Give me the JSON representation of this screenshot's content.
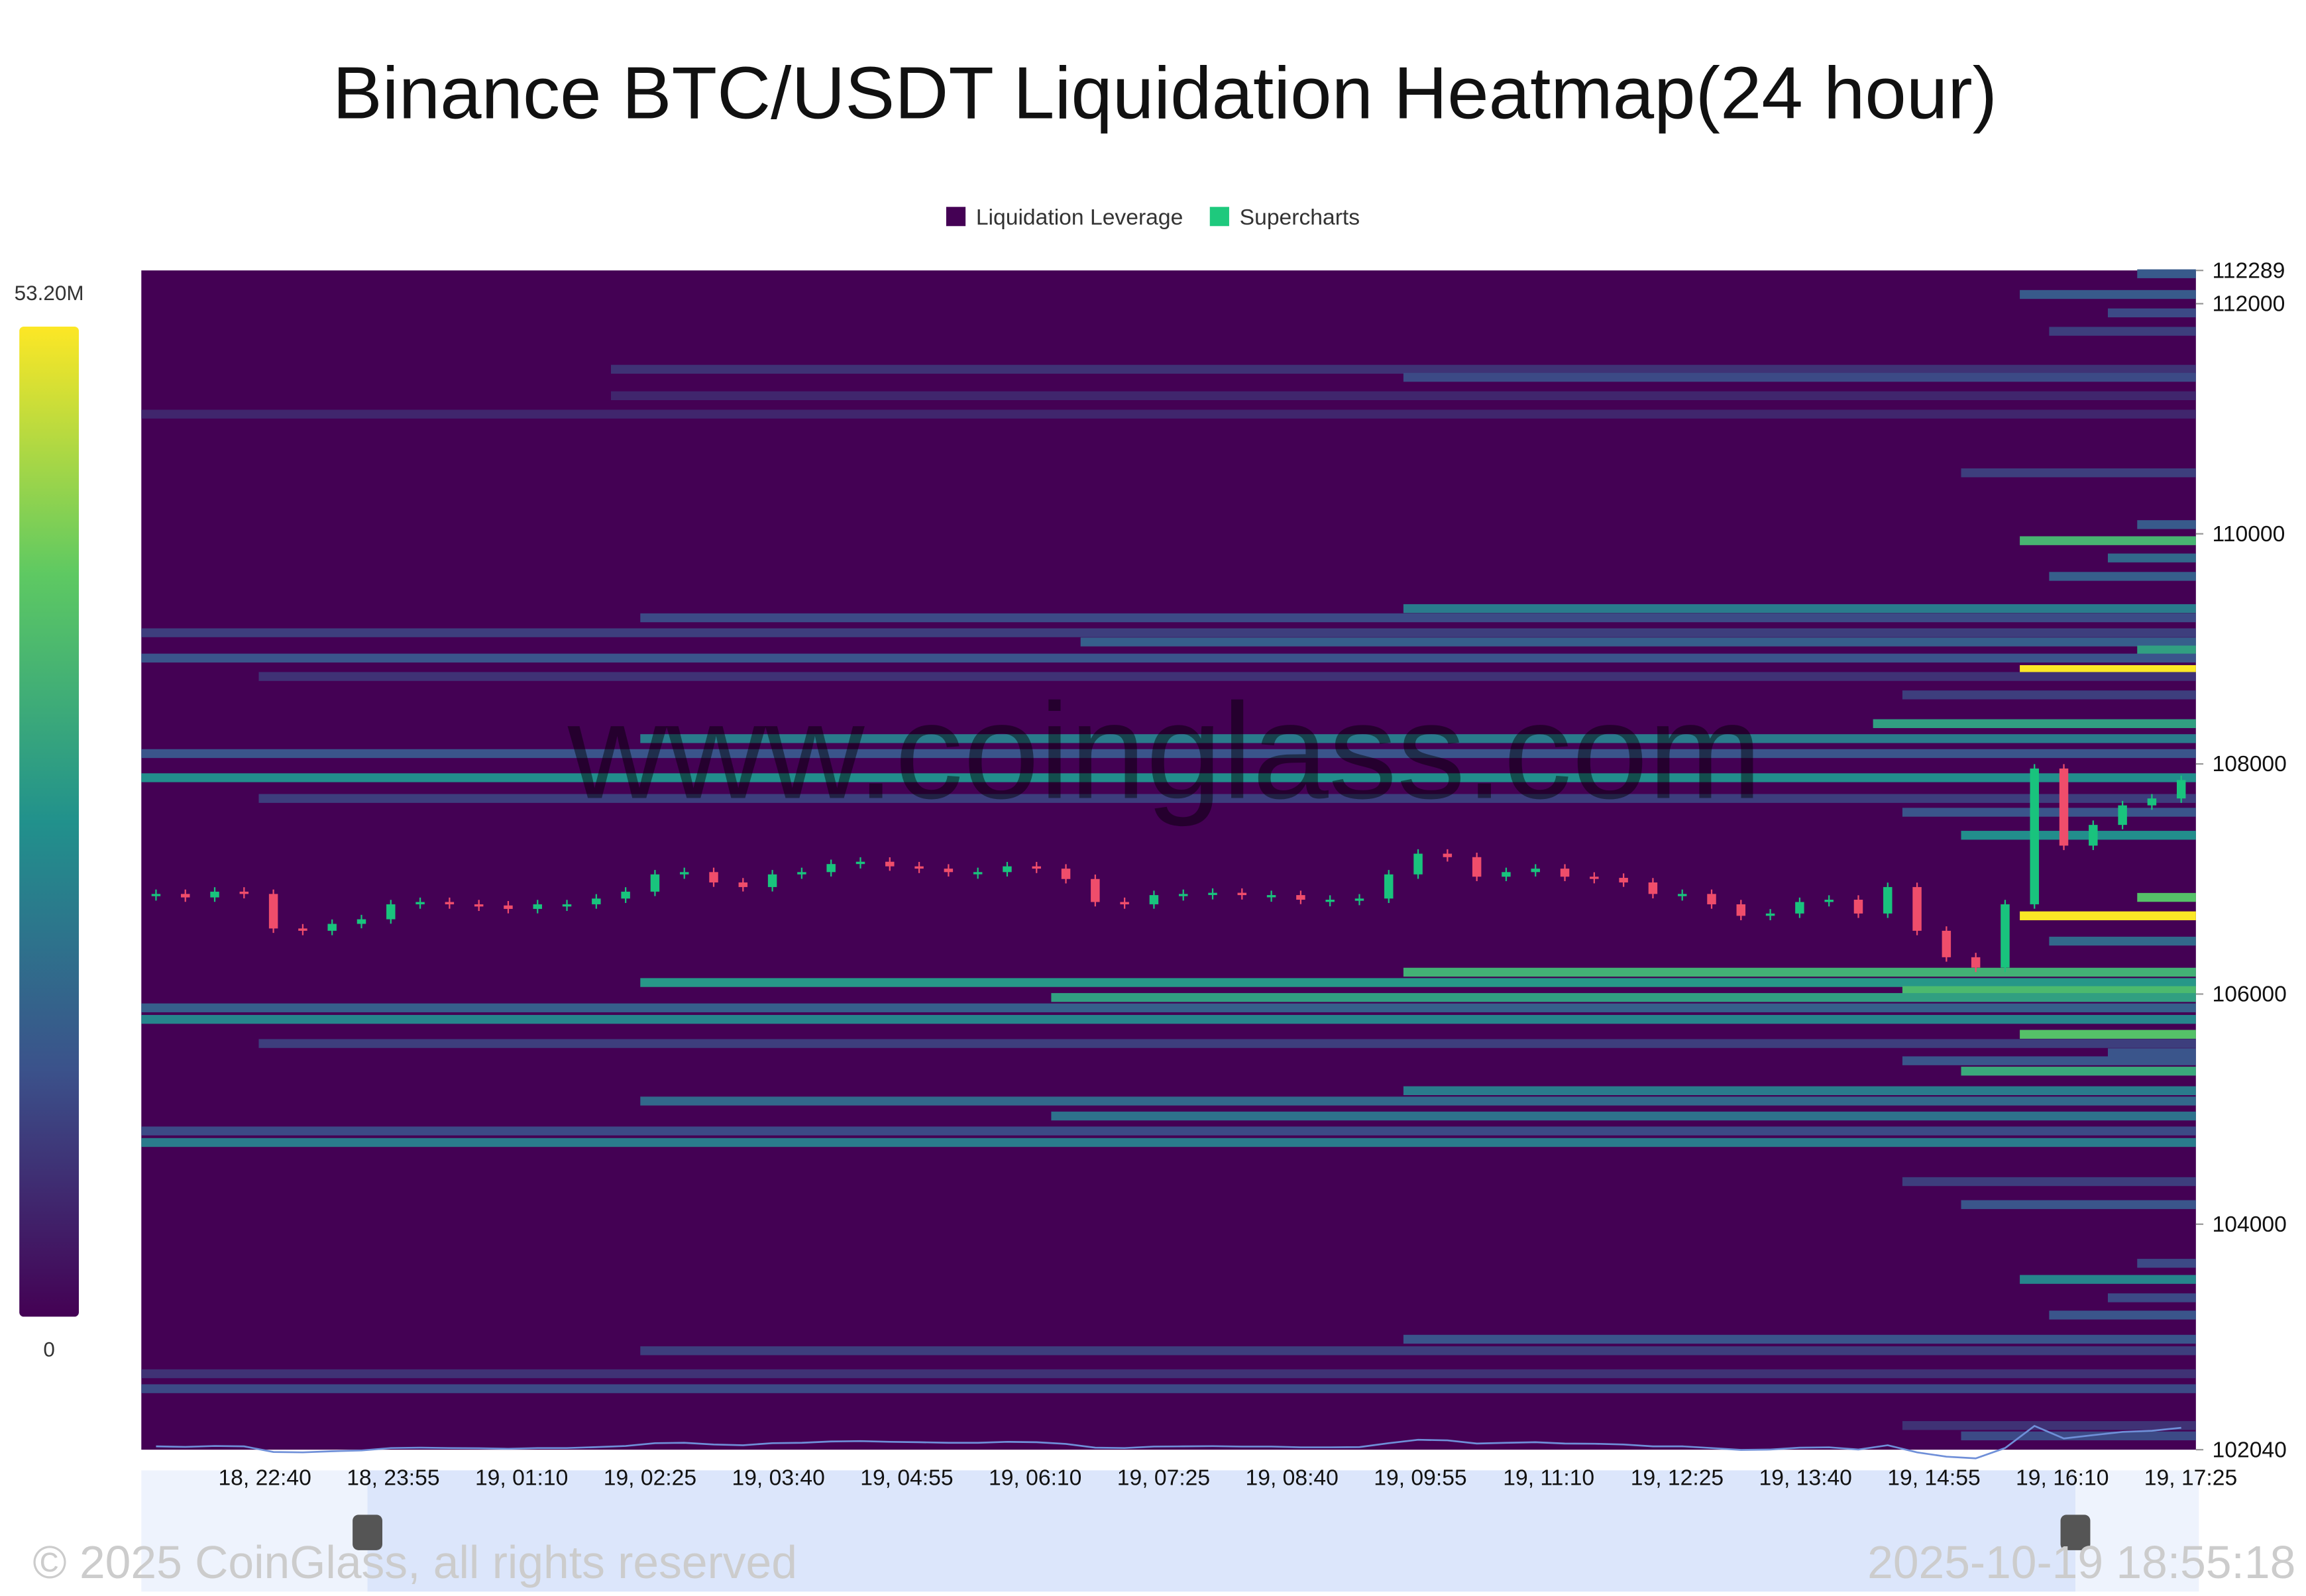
{
  "chart_data": {
    "type": "heatmap",
    "title": "Binance BTC/USDT Liquidation Heatmap(24 hour)",
    "watermark": "www.coinglass.com",
    "footer_left": "© 2025 CoinGlass, all rights reserved",
    "footer_right": "2025-10-19 18:55:18",
    "series": [
      {
        "name": "Liquidation Leverage",
        "color": "#440154"
      },
      {
        "name": "Supercharts",
        "color": "#1ec97d"
      }
    ],
    "up_color": "#19c37d",
    "down_color": "#ef4d6b",
    "zlim": [
      0,
      {
        "value": 53.2,
        "label": "53.20M"
      }
    ],
    "ylim": [
      102040,
      112289
    ],
    "yticks": [
      102040,
      104000,
      106000,
      108000,
      110000,
      112000,
      112289
    ],
    "x_labels": [
      "18, 22:40",
      "18, 23:55",
      "19, 01:10",
      "19, 02:25",
      "19, 03:40",
      "19, 04:55",
      "19, 06:10",
      "19, 07:25",
      "19, 08:40",
      "19, 09:55",
      "19, 11:10",
      "19, 12:25",
      "19, 13:40",
      "19, 14:55",
      "19, 16:10",
      "19, 17:25"
    ],
    "price": [
      106870,
      106840,
      106890,
      106870,
      106570,
      106550,
      106610,
      106650,
      106780,
      106800,
      106780,
      106770,
      106740,
      106780,
      106780,
      106830,
      106890,
      107040,
      107060,
      106970,
      106930,
      107040,
      107060,
      107130,
      107150,
      107110,
      107090,
      107060,
      107060,
      107110,
      107090,
      107000,
      106800,
      106780,
      106860,
      106870,
      106880,
      106860,
      106860,
      106820,
      106820,
      106830,
      107040,
      107220,
      107190,
      107020,
      107060,
      107090,
      107020,
      107010,
      106970,
      106870,
      106870,
      106780,
      106680,
      106700,
      106800,
      106820,
      106700,
      106930,
      106550,
      106320,
      106230,
      106780,
      107960,
      107290,
      107470,
      107640,
      107700,
      107860
    ],
    "bands": [
      {
        "price": 112260,
        "start": 68,
        "value": 15
      },
      {
        "price": 112080,
        "start": 64,
        "value": 15
      },
      {
        "price": 111920,
        "start": 67,
        "value": 12
      },
      {
        "price": 111760,
        "start": 65,
        "value": 10
      },
      {
        "price": 111430,
        "start": 16,
        "value": 8
      },
      {
        "price": 111360,
        "start": 43,
        "value": 12
      },
      {
        "price": 111200,
        "start": 16,
        "value": 6
      },
      {
        "price": 111040,
        "start": 0,
        "value": 6
      },
      {
        "price": 110530,
        "start": 62,
        "value": 10
      },
      {
        "price": 110080,
        "start": 68,
        "value": 15
      },
      {
        "price": 109940,
        "start": 64,
        "value": 35
      },
      {
        "price": 109790,
        "start": 67,
        "value": 18
      },
      {
        "price": 109630,
        "start": 65,
        "value": 16
      },
      {
        "price": 109350,
        "start": 43,
        "value": 22
      },
      {
        "price": 109270,
        "start": 17,
        "value": 12
      },
      {
        "price": 109140,
        "start": 0,
        "value": 10
      },
      {
        "price": 109060,
        "start": 32,
        "value": 16
      },
      {
        "price": 108990,
        "start": 68,
        "value": 30
      },
      {
        "price": 108920,
        "start": 0,
        "value": 14
      },
      {
        "price": 108820,
        "start": 64,
        "value": 53
      },
      {
        "price": 108760,
        "start": 4,
        "value": 8
      },
      {
        "price": 108600,
        "start": 60,
        "value": 10
      },
      {
        "price": 108350,
        "start": 59,
        "value": 30
      },
      {
        "price": 108220,
        "start": 17,
        "value": 22
      },
      {
        "price": 108090,
        "start": 0,
        "value": 14
      },
      {
        "price": 107880,
        "start": 0,
        "value": 26
      },
      {
        "price": 107700,
        "start": 4,
        "value": 10
      },
      {
        "price": 107580,
        "start": 60,
        "value": 14
      },
      {
        "price": 107380,
        "start": 62,
        "value": 26
      },
      {
        "price": 106840,
        "start": 68,
        "value": 38
      },
      {
        "price": 106680,
        "start": 64,
        "value": 53
      },
      {
        "price": 106460,
        "start": 65,
        "value": 18
      },
      {
        "price": 106190,
        "start": 43,
        "value": 34
      },
      {
        "price": 106100,
        "start": 17,
        "value": 28
      },
      {
        "price": 106030,
        "start": 60,
        "value": 36
      },
      {
        "price": 105970,
        "start": 31,
        "value": 30
      },
      {
        "price": 105880,
        "start": 0,
        "value": 16
      },
      {
        "price": 105780,
        "start": 0,
        "value": 24
      },
      {
        "price": 105650,
        "start": 64,
        "value": 38
      },
      {
        "price": 105570,
        "start": 4,
        "value": 10
      },
      {
        "price": 105490,
        "start": 67,
        "value": 14
      },
      {
        "price": 105420,
        "start": 60,
        "value": 14
      },
      {
        "price": 105330,
        "start": 62,
        "value": 32
      },
      {
        "price": 105160,
        "start": 43,
        "value": 22
      },
      {
        "price": 105070,
        "start": 17,
        "value": 18
      },
      {
        "price": 104940,
        "start": 31,
        "value": 20
      },
      {
        "price": 104810,
        "start": 0,
        "value": 12
      },
      {
        "price": 104710,
        "start": 0,
        "value": 22
      },
      {
        "price": 104370,
        "start": 60,
        "value": 10
      },
      {
        "price": 104170,
        "start": 62,
        "value": 14
      },
      {
        "price": 103660,
        "start": 68,
        "value": 12
      },
      {
        "price": 103520,
        "start": 64,
        "value": 24
      },
      {
        "price": 103360,
        "start": 67,
        "value": 12
      },
      {
        "price": 103210,
        "start": 65,
        "value": 14
      },
      {
        "price": 103000,
        "start": 43,
        "value": 14
      },
      {
        "price": 102900,
        "start": 17,
        "value": 10
      },
      {
        "price": 102700,
        "start": 0,
        "value": 8
      },
      {
        "price": 102570,
        "start": 0,
        "value": 12
      },
      {
        "price": 102250,
        "start": 60,
        "value": 8
      },
      {
        "price": 102160,
        "start": 62,
        "value": 12
      }
    ]
  }
}
